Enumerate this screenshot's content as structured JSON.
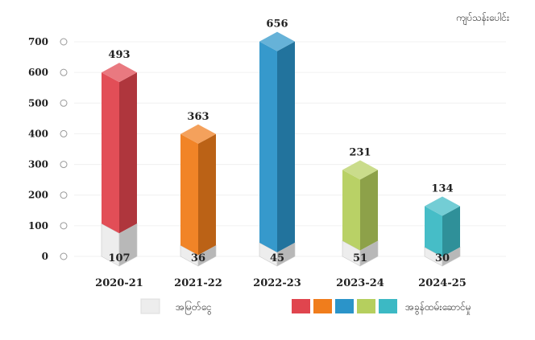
{
  "unit_label": "ကျပ်သန်းပေါင်း",
  "chart_data": {
    "type": "bar",
    "stacked": true,
    "title": "",
    "xlabel": "",
    "ylabel": "",
    "ylim": [
      0,
      700
    ],
    "yticks": [
      0,
      100,
      200,
      300,
      400,
      500,
      600,
      700
    ],
    "categories": [
      "2020-21",
      "2021-22",
      "2022-23",
      "2023-24",
      "2024-25"
    ],
    "series": [
      {
        "name": "အမြတ်ငွေ",
        "values": [
          107,
          36,
          45,
          51,
          30
        ],
        "color": "#ededed"
      },
      {
        "name": "အခွန်ထမ်းဆောင်မှု",
        "values": [
          493,
          363,
          656,
          231,
          134
        ],
        "colors": [
          "#e0454e",
          "#f07d1c",
          "#2b94c9",
          "#b5cf5e",
          "#3cb9c4"
        ]
      }
    ],
    "grid": true,
    "legend": "bottom"
  }
}
